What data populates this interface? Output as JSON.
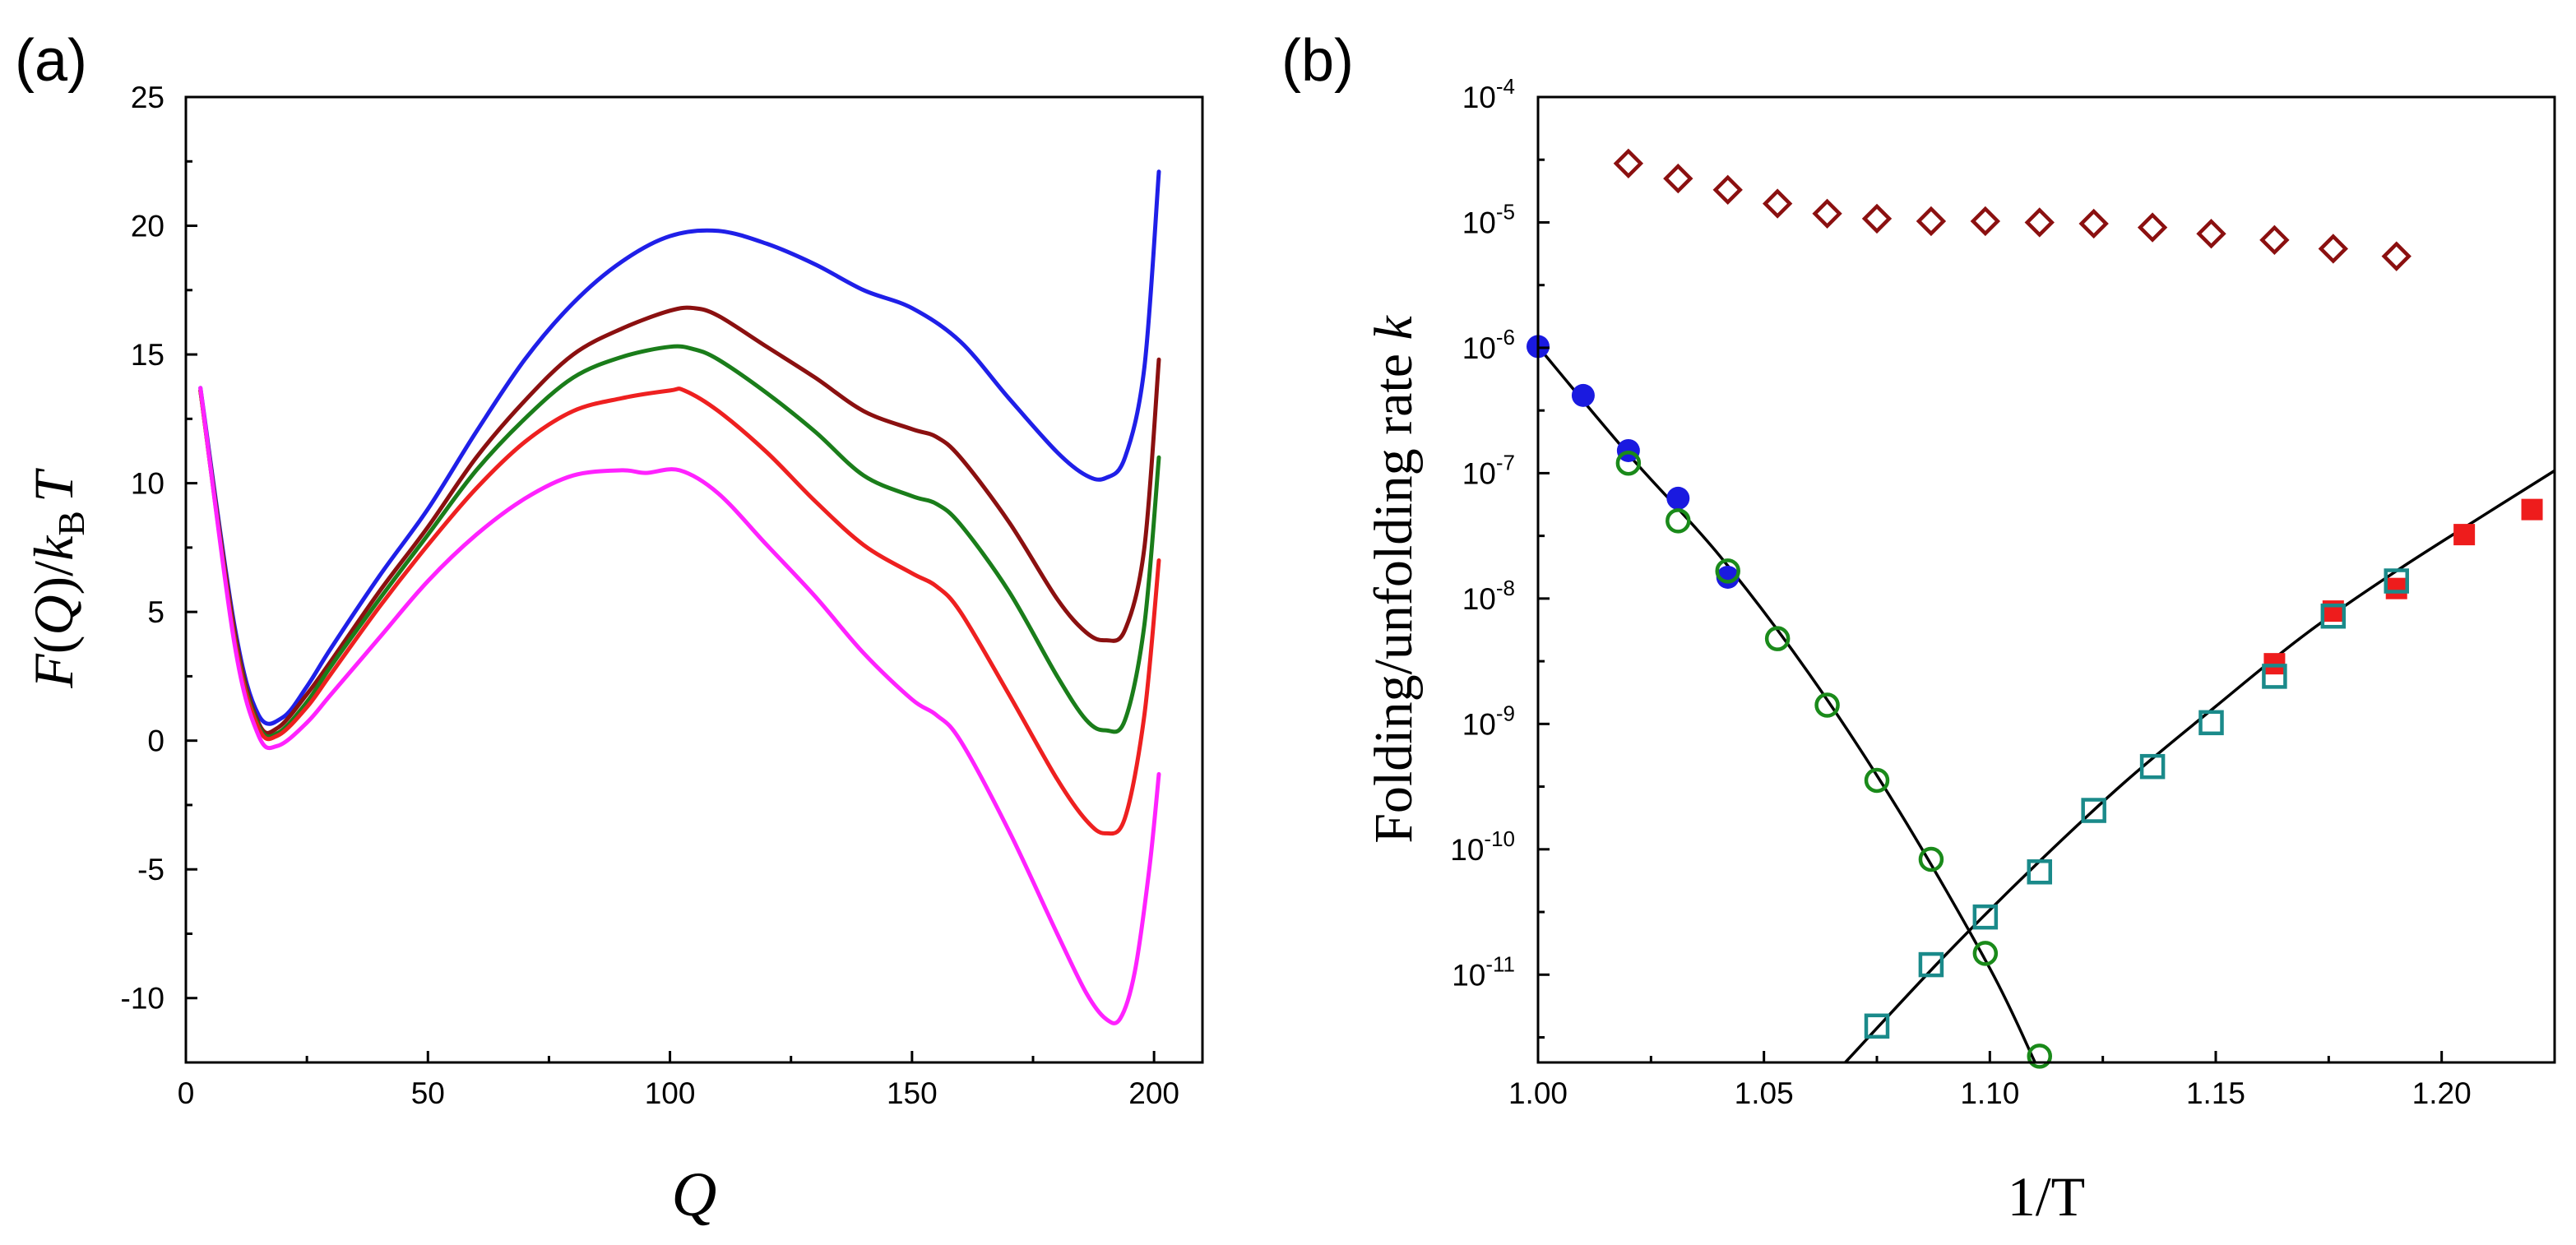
{
  "chart_data": [
    {
      "panel": "(a)",
      "type": "line",
      "xlabel": "Q",
      "ylabel": "F(Q)/kBT",
      "ylabel_parts": {
        "F": "F",
        "open": "(",
        "Q": "Q",
        "close": ")/",
        "k": "k",
        "sub": "B",
        "T": "T"
      },
      "xlim": [
        0,
        210
      ],
      "ylim": [
        -12.5,
        25
      ],
      "xticks": [
        "0",
        "50",
        "100",
        "150",
        "200"
      ],
      "yticks": [
        "-10",
        "-5",
        "0",
        "5",
        "10",
        "15",
        "20",
        "25"
      ],
      "series": [
        {
          "name": "blue",
          "color": "#1f1fe8",
          "points": [
            [
              3,
              13.7
            ],
            [
              10,
              4.5
            ],
            [
              15,
              1.0
            ],
            [
              20,
              0.9
            ],
            [
              25,
              2.1
            ],
            [
              30,
              3.6
            ],
            [
              40,
              6.4
            ],
            [
              50,
              9.0
            ],
            [
              60,
              12.0
            ],
            [
              70,
              14.8
            ],
            [
              80,
              17.0
            ],
            [
              90,
              18.6
            ],
            [
              100,
              19.6
            ],
            [
              110,
              19.8
            ],
            [
              120,
              19.3
            ],
            [
              130,
              18.5
            ],
            [
              140,
              17.5
            ],
            [
              150,
              16.8
            ],
            [
              160,
              15.5
            ],
            [
              170,
              13.3
            ],
            [
              180,
              11.2
            ],
            [
              186,
              10.3
            ],
            [
              190,
              10.2
            ],
            [
              194,
              11.0
            ],
            [
              198,
              14.5
            ],
            [
              201,
              22.1
            ]
          ]
        },
        {
          "name": "darkred",
          "color": "#8b1010",
          "points": [
            [
              3,
              13.6
            ],
            [
              10,
              4.3
            ],
            [
              15,
              0.7
            ],
            [
              19,
              0.5
            ],
            [
              25,
              1.8
            ],
            [
              30,
              3.1
            ],
            [
              40,
              5.8
            ],
            [
              50,
              8.3
            ],
            [
              60,
              11.0
            ],
            [
              70,
              13.2
            ],
            [
              80,
              15.0
            ],
            [
              90,
              16.0
            ],
            [
              100,
              16.7
            ],
            [
              105,
              16.8
            ],
            [
              110,
              16.5
            ],
            [
              120,
              15.3
            ],
            [
              130,
              14.1
            ],
            [
              140,
              12.8
            ],
            [
              150,
              12.1
            ],
            [
              155,
              11.8
            ],
            [
              160,
              11.0
            ],
            [
              170,
              8.5
            ],
            [
              180,
              5.5
            ],
            [
              186,
              4.2
            ],
            [
              190,
              3.9
            ],
            [
              194,
              4.3
            ],
            [
              198,
              7.5
            ],
            [
              201,
              14.8
            ]
          ]
        },
        {
          "name": "green",
          "color": "#1a7d1a",
          "points": [
            [
              3,
              13.6
            ],
            [
              10,
              4.1
            ],
            [
              15,
              0.6
            ],
            [
              19,
              0.3
            ],
            [
              25,
              1.5
            ],
            [
              30,
              2.9
            ],
            [
              40,
              5.5
            ],
            [
              50,
              8.0
            ],
            [
              60,
              10.5
            ],
            [
              70,
              12.5
            ],
            [
              80,
              14.1
            ],
            [
              90,
              14.9
            ],
            [
              100,
              15.3
            ],
            [
              105,
              15.2
            ],
            [
              110,
              14.8
            ],
            [
              120,
              13.5
            ],
            [
              130,
              12.0
            ],
            [
              140,
              10.3
            ],
            [
              150,
              9.5
            ],
            [
              155,
              9.2
            ],
            [
              160,
              8.4
            ],
            [
              170,
              5.8
            ],
            [
              180,
              2.5
            ],
            [
              186,
              0.8
            ],
            [
              190,
              0.4
            ],
            [
              194,
              0.8
            ],
            [
              198,
              4.5
            ],
            [
              201,
              11.0
            ]
          ]
        },
        {
          "name": "red",
          "color": "#ee2020",
          "points": [
            [
              3,
              13.6
            ],
            [
              10,
              4.0
            ],
            [
              15,
              0.5
            ],
            [
              19,
              0.2
            ],
            [
              25,
              1.3
            ],
            [
              30,
              2.6
            ],
            [
              40,
              5.2
            ],
            [
              50,
              7.6
            ],
            [
              60,
              9.8
            ],
            [
              70,
              11.6
            ],
            [
              80,
              12.8
            ],
            [
              90,
              13.3
            ],
            [
              100,
              13.6
            ],
            [
              103,
              13.6
            ],
            [
              110,
              12.8
            ],
            [
              120,
              11.2
            ],
            [
              130,
              9.3
            ],
            [
              140,
              7.6
            ],
            [
              150,
              6.5
            ],
            [
              155,
              6.0
            ],
            [
              160,
              5.0
            ],
            [
              170,
              1.8
            ],
            [
              180,
              -1.5
            ],
            [
              186,
              -3.1
            ],
            [
              190,
              -3.6
            ],
            [
              194,
              -3.0
            ],
            [
              198,
              1.0
            ],
            [
              201,
              7.0
            ]
          ]
        },
        {
          "name": "magenta",
          "color": "#ff22ff",
          "points": [
            [
              3,
              13.7
            ],
            [
              10,
              3.8
            ],
            [
              15,
              0.2
            ],
            [
              19,
              -0.2
            ],
            [
              25,
              0.7
            ],
            [
              30,
              1.8
            ],
            [
              40,
              4.0
            ],
            [
              50,
              6.2
            ],
            [
              60,
              8.0
            ],
            [
              70,
              9.4
            ],
            [
              80,
              10.3
            ],
            [
              90,
              10.5
            ],
            [
              95,
              10.4
            ],
            [
              102,
              10.5
            ],
            [
              110,
              9.6
            ],
            [
              120,
              7.6
            ],
            [
              130,
              5.6
            ],
            [
              140,
              3.4
            ],
            [
              150,
              1.6
            ],
            [
              155,
              1.0
            ],
            [
              160,
              0.0
            ],
            [
              170,
              -3.5
            ],
            [
              180,
              -7.5
            ],
            [
              186,
              -9.8
            ],
            [
              190,
              -10.8
            ],
            [
              193,
              -10.8
            ],
            [
              196,
              -9.0
            ],
            [
              199,
              -5.0
            ],
            [
              201,
              -1.3
            ]
          ]
        }
      ]
    },
    {
      "panel": "(b)",
      "type": "scatter",
      "xlabel": "1/T",
      "ylabel": "Folding/unfolding rate k",
      "ylabel_parts": {
        "text": "Folding/unfolding rate ",
        "k": "k"
      },
      "yscale": "log",
      "xlim": [
        1.0,
        1.225
      ],
      "ylim_log10": [
        -11.7,
        -4.0
      ],
      "xticks": [
        "1.00",
        "1.05",
        "1.10",
        "1.15",
        "1.20"
      ],
      "yticks": [
        {
          "base": "10",
          "exp": "-4"
        },
        {
          "base": "10",
          "exp": "-5"
        },
        {
          "base": "10",
          "exp": "-6"
        },
        {
          "base": "10",
          "exp": "-7"
        },
        {
          "base": "10",
          "exp": "-8"
        },
        {
          "base": "10",
          "exp": "-9"
        },
        {
          "base": "10",
          "exp": "-10"
        },
        {
          "base": "10",
          "exp": "-11"
        }
      ],
      "series": [
        {
          "name": "open diamonds",
          "marker": "diamond-open",
          "color": "#8b1010",
          "points": [
            [
              1.02,
              -4.53
            ],
            [
              1.031,
              -4.65
            ],
            [
              1.042,
              -4.74
            ],
            [
              1.053,
              -4.85
            ],
            [
              1.064,
              -4.93
            ],
            [
              1.075,
              -4.97
            ],
            [
              1.087,
              -4.99
            ],
            [
              1.099,
              -4.99
            ],
            [
              1.111,
              -5.0
            ],
            [
              1.123,
              -5.01
            ],
            [
              1.136,
              -5.04
            ],
            [
              1.149,
              -5.09
            ],
            [
              1.163,
              -5.14
            ],
            [
              1.176,
              -5.21
            ],
            [
              1.19,
              -5.27
            ]
          ]
        },
        {
          "name": "filled circles",
          "marker": "circle-filled",
          "color": "#1a1ae0",
          "points": [
            [
              1.0,
              -5.99
            ],
            [
              1.01,
              -6.38
            ],
            [
              1.02,
              -6.82
            ],
            [
              1.031,
              -7.2
            ],
            [
              1.042,
              -7.83
            ]
          ]
        },
        {
          "name": "open circles",
          "marker": "circle-open",
          "color": "#1a8a1a",
          "points": [
            [
              1.02,
              -6.92
            ],
            [
              1.031,
              -7.38
            ],
            [
              1.042,
              -7.78
            ],
            [
              1.053,
              -8.32
            ],
            [
              1.064,
              -8.85
            ],
            [
              1.075,
              -9.45
            ],
            [
              1.087,
              -10.08
            ],
            [
              1.099,
              -10.83
            ],
            [
              1.111,
              -11.65
            ]
          ]
        },
        {
          "name": "filled squares",
          "marker": "square-filled",
          "color": "#ee1c1c",
          "points": [
            [
              1.163,
              -8.52
            ],
            [
              1.176,
              -8.1
            ],
            [
              1.19,
              -7.92
            ],
            [
              1.205,
              -7.49
            ],
            [
              1.22,
              -7.29
            ]
          ]
        },
        {
          "name": "open squares",
          "marker": "square-open",
          "color": "#1a8a8a",
          "points": [
            [
              1.075,
              -11.41
            ],
            [
              1.087,
              -10.92
            ],
            [
              1.099,
              -10.54
            ],
            [
              1.111,
              -10.18
            ],
            [
              1.123,
              -9.69
            ],
            [
              1.136,
              -9.34
            ],
            [
              1.149,
              -8.99
            ],
            [
              1.163,
              -8.62
            ],
            [
              1.176,
              -8.14
            ],
            [
              1.19,
              -7.86
            ]
          ]
        }
      ],
      "fits": [
        {
          "name": "folding fit",
          "color": "#000000",
          "points": [
            [
              1.0,
              -5.99
            ],
            [
              1.02,
              -6.85
            ],
            [
              1.04,
              -7.65
            ],
            [
              1.06,
              -8.6
            ],
            [
              1.08,
              -9.7
            ],
            [
              1.1,
              -10.95
            ],
            [
              1.11,
              -11.7
            ]
          ]
        },
        {
          "name": "unfolding fit",
          "color": "#000000",
          "points": [
            [
              1.068,
              -11.7
            ],
            [
              1.09,
              -10.85
            ],
            [
              1.11,
              -10.13
            ],
            [
              1.13,
              -9.46
            ],
            [
              1.15,
              -8.86
            ],
            [
              1.17,
              -8.28
            ],
            [
              1.19,
              -7.78
            ],
            [
              1.21,
              -7.32
            ],
            [
              1.225,
              -6.98
            ]
          ]
        }
      ]
    }
  ]
}
